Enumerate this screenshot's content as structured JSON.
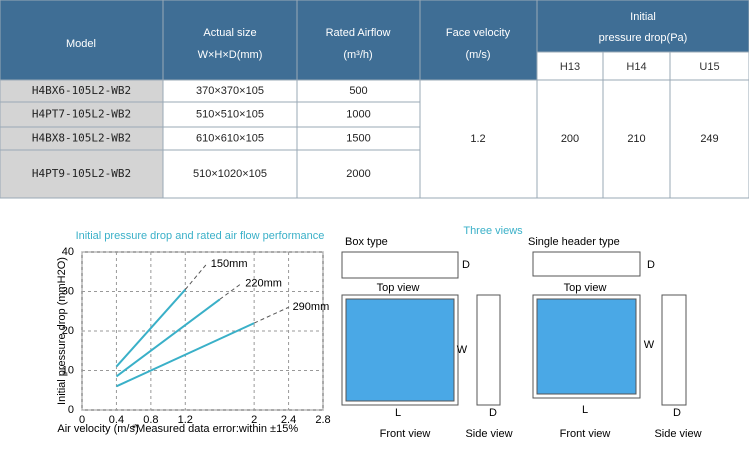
{
  "table": {
    "header": {
      "model": "Model",
      "size": "Actual size",
      "size_unit": "W×H×D(mm)",
      "airflow": "Rated Airflow",
      "airflow_unit": "(m³/h)",
      "velocity": "Face velocity",
      "velocity_unit": "(m/s)",
      "pressure": "Initial",
      "pressure_2": "pressure drop(Pa)",
      "grades": [
        "H13",
        "H14",
        "U15"
      ]
    },
    "rows": [
      [
        "H4BX6-105L2-WB2",
        "370×370×105",
        "500"
      ],
      [
        "H4PT7-105L2-WB2",
        "510×510×105",
        "1000"
      ],
      [
        "H4BX8-105L2-WB2",
        "610×610×105",
        "1500"
      ],
      [
        "H4PT9-105L2-WB2",
        "510×1020×105",
        "2000"
      ]
    ],
    "face_velocity": "1.2",
    "pressure_drops": [
      "200",
      "210",
      "249"
    ]
  },
  "chart_data": {
    "type": "line",
    "title": "Initial pressure drop and rated air flow performance",
    "x_label": "Air velocity (m/s)",
    "y_label": "Initial pressure drop (mmH2O)",
    "note": "*Measured data error:within ±15%",
    "xlim": [
      0,
      2.8
    ],
    "ylim": [
      0,
      40
    ],
    "xticks": [
      0,
      0.4,
      0.8,
      1.2,
      2.0,
      2.4,
      2.8
    ],
    "yticks": [
      0,
      10,
      20,
      30,
      40
    ],
    "grid": true,
    "series": [
      {
        "name": "150mm",
        "color": "#3ab0c8",
        "x": [
          0.4,
          1.2,
          1.45
        ],
        "values": [
          11,
          30.5,
          37
        ]
      },
      {
        "name": "220mm",
        "color": "#3ab0c8",
        "x": [
          0.4,
          1.6,
          1.85
        ],
        "values": [
          8.5,
          28,
          32
        ]
      },
      {
        "name": "290mm",
        "color": "#3ab0c8",
        "x": [
          0.4,
          2.0,
          2.4
        ],
        "values": [
          6,
          22,
          26
        ]
      }
    ]
  },
  "views": {
    "title": "Three views",
    "box_type": "Box type",
    "single_header": "Single header type",
    "top_view": "Top view",
    "front_view": "Front view",
    "side_view": "Side view",
    "w": "W",
    "l": "L",
    "d": "D"
  }
}
